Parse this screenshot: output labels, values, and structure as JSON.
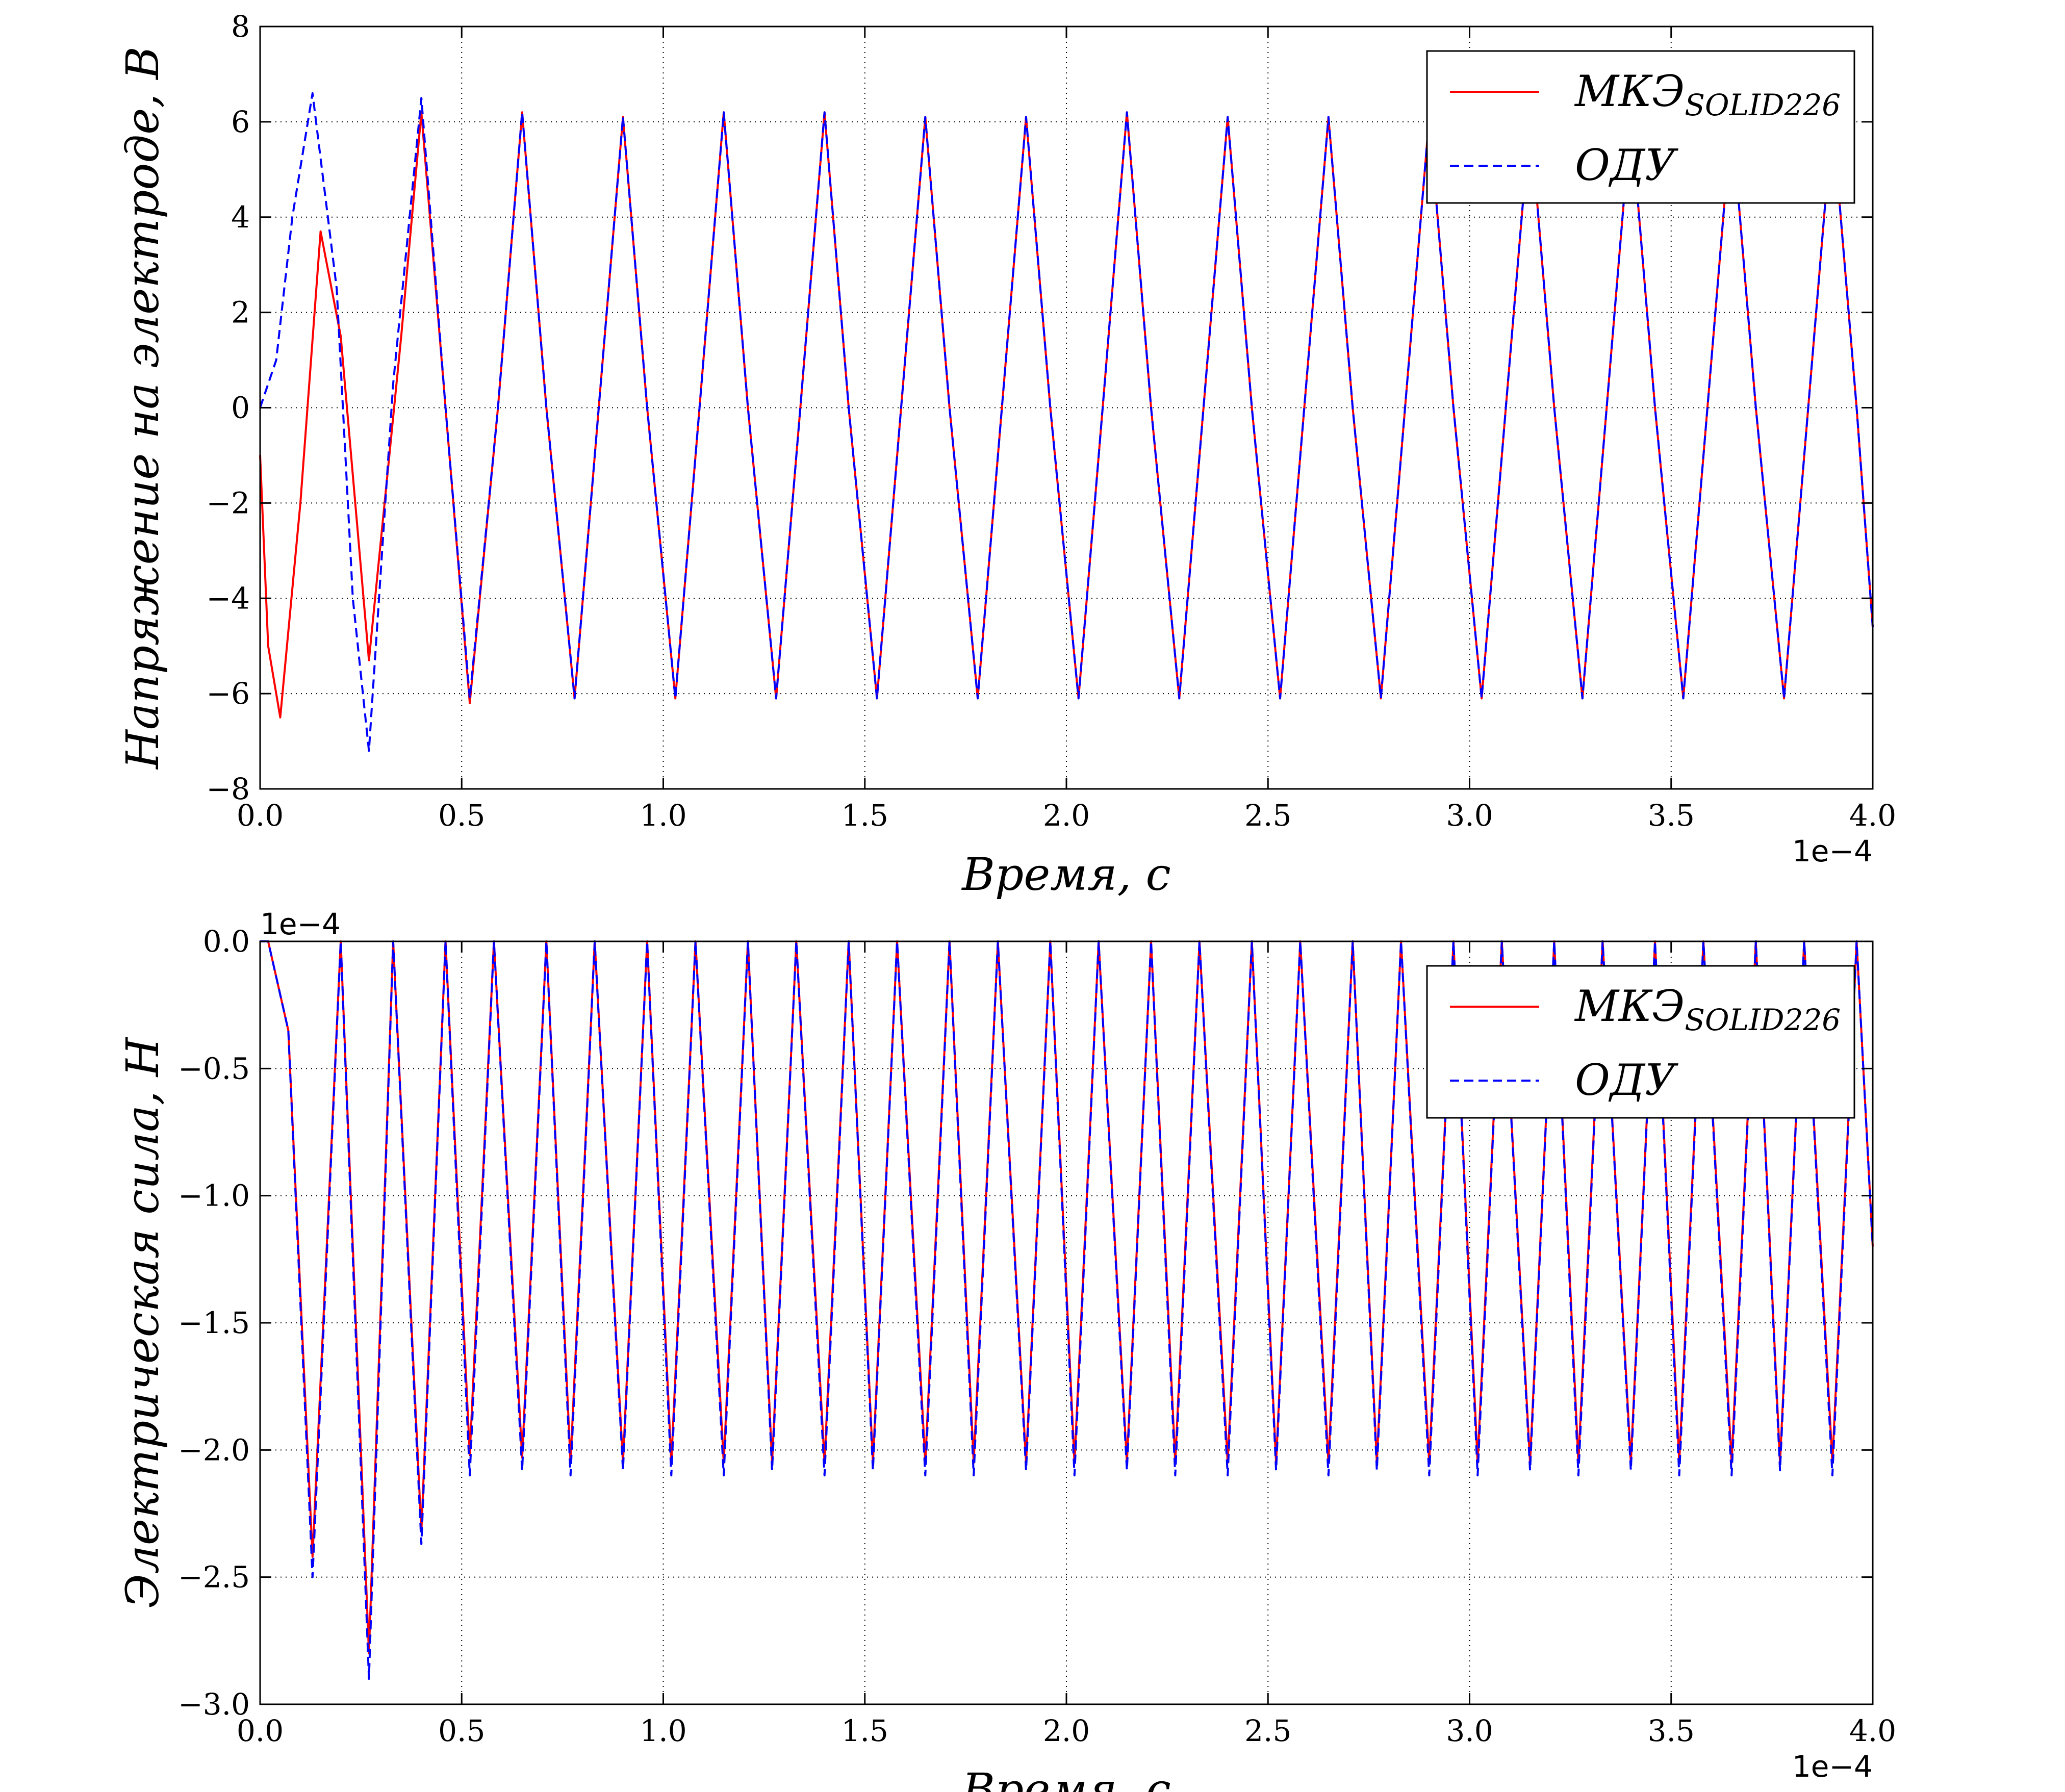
{
  "chart_data": [
    {
      "type": "line",
      "xlabel": "Время,  с",
      "ylabel": "Напряжение на электроде,  В",
      "xlim": [
        0.0,
        4.0
      ],
      "ylim": [
        -8,
        8
      ],
      "x_offset_label": "1e−4",
      "y_offset_label": "",
      "xticks": [
        0.0,
        0.5,
        1.0,
        1.5,
        2.0,
        2.5,
        3.0,
        3.5,
        4.0
      ],
      "xtick_labels": [
        "0.0",
        "0.5",
        "1.0",
        "1.5",
        "2.0",
        "2.5",
        "3.0",
        "3.5",
        "4.0"
      ],
      "yticks": [
        -8,
        -6,
        -4,
        -2,
        0,
        2,
        4,
        6,
        8
      ],
      "ytick_labels": [
        "−8",
        "−6",
        "−4",
        "−2",
        "0",
        "2",
        "4",
        "6",
        "8"
      ],
      "grid": true,
      "legend_position": "top-right",
      "series": [
        {
          "name": "МКЭ",
          "name_subscript": "SOLID226",
          "color": "#ff0000",
          "dash": "solid",
          "x": [
            0.0,
            0.02,
            0.05,
            0.1,
            0.15,
            0.2,
            0.27,
            0.35,
            0.4,
            0.46,
            0.52,
            0.59,
            0.65,
            0.71,
            0.78,
            0.84,
            0.9,
            0.96,
            1.03,
            1.09,
            1.15,
            1.21,
            1.28,
            1.34,
            1.4,
            1.46,
            1.53,
            1.59,
            1.65,
            1.71,
            1.78,
            1.84,
            1.9,
            1.96,
            2.03,
            2.09,
            2.15,
            2.21,
            2.28,
            2.34,
            2.4,
            2.46,
            2.53,
            2.59,
            2.65,
            2.71,
            2.78,
            2.84,
            2.9,
            2.96,
            3.03,
            3.09,
            3.15,
            3.21,
            3.28,
            3.34,
            3.4,
            3.46,
            3.53,
            3.59,
            3.65,
            3.71,
            3.78,
            3.84,
            3.9,
            3.96,
            4.0
          ],
          "y": [
            -1.0,
            -5.0,
            -6.5,
            -2.0,
            3.7,
            1.5,
            -5.3,
            1.5,
            6.2,
            0.0,
            -6.2,
            0.0,
            6.2,
            0.0,
            -6.1,
            0.0,
            6.1,
            0.0,
            -6.1,
            0.0,
            6.2,
            0.0,
            -6.1,
            0.0,
            6.2,
            0.0,
            -6.1,
            0.0,
            6.1,
            0.0,
            -6.1,
            0.0,
            6.1,
            0.0,
            -6.1,
            0.0,
            6.2,
            0.0,
            -6.1,
            0.0,
            6.1,
            0.0,
            -6.1,
            0.0,
            6.1,
            0.0,
            -6.1,
            0.0,
            6.1,
            0.0,
            -6.1,
            0.0,
            6.1,
            0.0,
            -6.1,
            0.0,
            6.1,
            0.0,
            -6.1,
            0.0,
            6.1,
            0.0,
            -6.1,
            0.0,
            6.1,
            0.0,
            -4.6
          ]
        },
        {
          "name": "ОДУ",
          "color": "#0000ff",
          "dash": "dashed",
          "x": [
            0.0,
            0.04,
            0.08,
            0.13,
            0.19,
            0.23,
            0.27,
            0.33,
            0.4,
            0.46,
            0.52,
            0.59,
            0.65,
            0.71,
            0.78,
            0.84,
            0.9,
            0.96,
            1.03,
            1.09,
            1.15,
            1.21,
            1.28,
            1.34,
            1.4,
            1.46,
            1.53,
            1.59,
            1.65,
            1.71,
            1.78,
            1.84,
            1.9,
            1.96,
            2.03,
            2.09,
            2.15,
            2.21,
            2.28,
            2.34,
            2.4,
            2.46,
            2.53,
            2.59,
            2.65,
            2.71,
            2.78,
            2.84,
            2.9,
            2.96,
            3.03,
            3.09,
            3.15,
            3.21,
            3.28,
            3.34,
            3.4,
            3.46,
            3.53,
            3.59,
            3.65,
            3.71,
            3.78,
            3.84,
            3.9,
            3.96,
            4.0
          ],
          "y": [
            0.0,
            1.0,
            4.0,
            6.6,
            2.5,
            -4.0,
            -7.2,
            0.5,
            6.5,
            0.0,
            -6.1,
            0.0,
            6.2,
            0.0,
            -6.1,
            0.0,
            6.1,
            0.0,
            -6.1,
            0.0,
            6.2,
            0.0,
            -6.1,
            0.0,
            6.2,
            0.0,
            -6.1,
            0.0,
            6.1,
            0.0,
            -6.1,
            0.0,
            6.1,
            0.0,
            -6.1,
            0.0,
            6.2,
            0.0,
            -6.1,
            0.0,
            6.1,
            0.0,
            -6.1,
            0.0,
            6.1,
            0.0,
            -6.1,
            0.0,
            6.1,
            0.0,
            -6.1,
            0.0,
            6.1,
            0.0,
            -6.1,
            0.0,
            6.1,
            0.0,
            -6.1,
            0.0,
            6.1,
            0.0,
            -6.1,
            0.0,
            6.1,
            0.0,
            -4.6
          ]
        }
      ]
    },
    {
      "type": "line",
      "xlabel": "Время,  с",
      "ylabel": "Электрическая сила,  Н",
      "xlim": [
        0.0,
        4.0
      ],
      "ylim": [
        -3.0,
        0.0
      ],
      "x_offset_label": "1e−4",
      "y_offset_label": "1e−4",
      "xticks": [
        0.0,
        0.5,
        1.0,
        1.5,
        2.0,
        2.5,
        3.0,
        3.5,
        4.0
      ],
      "xtick_labels": [
        "0.0",
        "0.5",
        "1.0",
        "1.5",
        "2.0",
        "2.5",
        "3.0",
        "3.5",
        "4.0"
      ],
      "yticks": [
        -3.0,
        -2.5,
        -2.0,
        -1.5,
        -1.0,
        -0.5,
        0.0
      ],
      "ytick_labels": [
        "−3.0",
        "−2.5",
        "−2.0",
        "−1.5",
        "−1.0",
        "−0.5",
        "0.0"
      ],
      "grid": true,
      "legend_position": "top-right",
      "series": [
        {
          "name": "МКЭ",
          "name_subscript": "SOLID226",
          "color": "#ff0000",
          "dash": "solid",
          "x": [
            0.0,
            0.02,
            0.07,
            0.13,
            0.2,
            0.27,
            0.33,
            0.4,
            0.46,
            0.52,
            0.58,
            0.65,
            0.71,
            0.77,
            0.83,
            0.9,
            0.96,
            1.02,
            1.08,
            1.15,
            1.21,
            1.27,
            1.33,
            1.4,
            1.46,
            1.52,
            1.58,
            1.65,
            1.71,
            1.77,
            1.83,
            1.9,
            1.96,
            2.02,
            2.08,
            2.15,
            2.21,
            2.27,
            2.33,
            2.4,
            2.46,
            2.52,
            2.58,
            2.65,
            2.71,
            2.77,
            2.83,
            2.9,
            2.96,
            3.02,
            3.08,
            3.15,
            3.21,
            3.27,
            3.33,
            3.4,
            3.46,
            3.52,
            3.58,
            3.65,
            3.71,
            3.77,
            3.83,
            3.9,
            3.96,
            4.0
          ],
          "y": [
            0.0,
            0.0,
            -0.35,
            -2.42,
            0.0,
            -2.8,
            0.0,
            -2.32,
            0.0,
            -2.02,
            0.0,
            -2.03,
            0.0,
            -2.05,
            0.0,
            -2.05,
            0.0,
            -2.05,
            0.0,
            -2.05,
            0.0,
            -2.05,
            0.0,
            -2.05,
            0.0,
            -2.05,
            0.0,
            -2.05,
            0.0,
            -2.05,
            0.0,
            -2.05,
            0.0,
            -2.05,
            0.0,
            -2.05,
            0.0,
            -2.05,
            0.0,
            -2.05,
            0.0,
            -2.05,
            0.0,
            -2.05,
            0.0,
            -2.05,
            0.0,
            -2.05,
            0.0,
            -2.05,
            0.0,
            -2.05,
            0.0,
            -2.05,
            0.0,
            -2.05,
            0.0,
            -2.05,
            0.0,
            -2.05,
            0.0,
            -2.05,
            0.0,
            -2.05,
            0.0,
            -1.2
          ]
        },
        {
          "name": "ОДУ",
          "color": "#0000ff",
          "dash": "dashed",
          "x": [
            0.0,
            0.02,
            0.07,
            0.13,
            0.2,
            0.27,
            0.33,
            0.4,
            0.46,
            0.52,
            0.58,
            0.65,
            0.71,
            0.77,
            0.83,
            0.9,
            0.96,
            1.02,
            1.08,
            1.15,
            1.21,
            1.27,
            1.33,
            1.4,
            1.46,
            1.52,
            1.58,
            1.65,
            1.71,
            1.77,
            1.83,
            1.9,
            1.96,
            2.02,
            2.08,
            2.15,
            2.21,
            2.27,
            2.33,
            2.4,
            2.46,
            2.52,
            2.58,
            2.65,
            2.71,
            2.77,
            2.83,
            2.9,
            2.96,
            3.02,
            3.08,
            3.15,
            3.21,
            3.27,
            3.33,
            3.4,
            3.46,
            3.52,
            3.58,
            3.65,
            3.71,
            3.77,
            3.83,
            3.9,
            3.96,
            4.0
          ],
          "y": [
            0.0,
            0.0,
            -0.35,
            -2.5,
            0.0,
            -2.9,
            0.0,
            -2.37,
            0.0,
            -2.1,
            0.0,
            -2.08,
            0.0,
            -2.1,
            0.0,
            -2.08,
            0.0,
            -2.1,
            0.0,
            -2.1,
            0.0,
            -2.08,
            0.0,
            -2.1,
            0.0,
            -2.08,
            0.0,
            -2.1,
            0.0,
            -2.1,
            0.0,
            -2.08,
            0.0,
            -2.1,
            0.0,
            -2.08,
            0.0,
            -2.1,
            0.0,
            -2.1,
            0.0,
            -2.08,
            0.0,
            -2.1,
            0.0,
            -2.08,
            0.0,
            -2.1,
            0.0,
            -2.1,
            0.0,
            -2.08,
            0.0,
            -2.1,
            0.0,
            -2.08,
            0.0,
            -2.1,
            0.0,
            -2.1,
            0.0,
            -2.08,
            0.0,
            -2.1,
            0.0,
            -1.2
          ]
        }
      ]
    }
  ]
}
